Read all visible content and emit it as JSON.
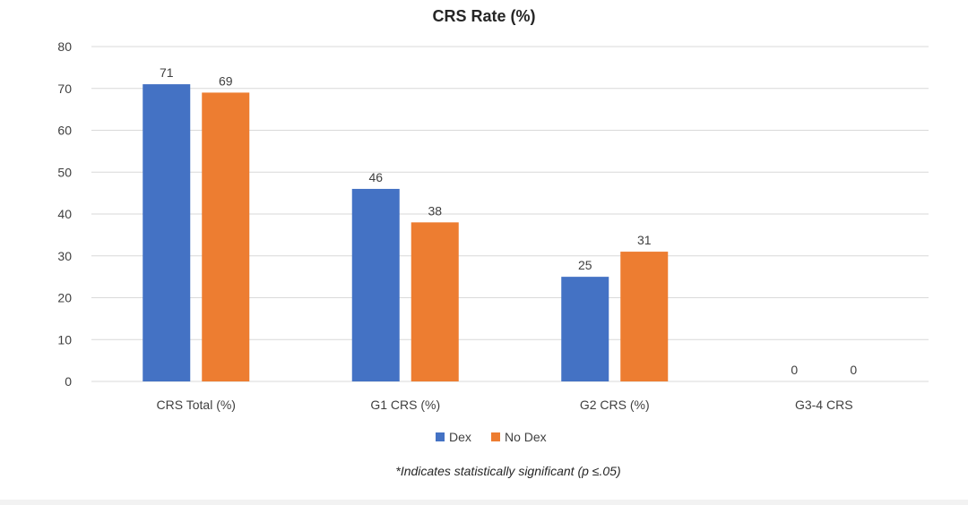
{
  "chart_data": {
    "type": "bar",
    "title": "CRS Rate (%)",
    "categories": [
      "CRS Total (%)",
      "G1 CRS (%)",
      "G2 CRS (%)",
      "G3-4 CRS"
    ],
    "series": [
      {
        "name": "Dex",
        "values": [
          71,
          46,
          25,
          0
        ],
        "color": "#4472C4"
      },
      {
        "name": "No Dex",
        "values": [
          69,
          38,
          31,
          0
        ],
        "color": "#ED7D31"
      }
    ],
    "xlabel": "",
    "ylabel": "",
    "ylim": [
      0,
      80
    ],
    "yticks": [
      0,
      10,
      20,
      30,
      40,
      50,
      60,
      70,
      80
    ],
    "grid": true,
    "legend_position": "bottom",
    "footnote": "*Indicates statistically significant (p ≤.05)",
    "gridline_color": "#d9d9d9"
  }
}
